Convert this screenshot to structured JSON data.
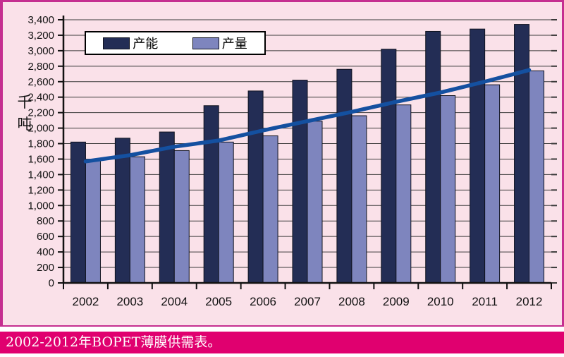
{
  "caption": "2002-2012年BOPET薄膜供需表。",
  "colors": {
    "background_pink": "#fae1e9",
    "frame_magenta": "#c52e90",
    "caption_bar": "#e0006f",
    "capacity_bar": "#232d55",
    "output_bar": "#7e85be",
    "trend_line": "#1450a0",
    "gridline": "#3a3a3a",
    "axis": "#111111"
  },
  "chart_data": {
    "type": "bar",
    "title": "",
    "caption": "2002-2012年BOPET薄膜供需表。",
    "ylabel": "千吨",
    "xlabel": "",
    "categories": [
      "2002",
      "2003",
      "2004",
      "2005",
      "2006",
      "2007",
      "2008",
      "2009",
      "2010",
      "2011",
      "2012"
    ],
    "series": [
      {
        "name": "产能",
        "type": "bar",
        "color": "#232d55",
        "values": [
          1820,
          1870,
          1950,
          2290,
          2480,
          2620,
          2760,
          3020,
          3250,
          3280,
          3340
        ]
      },
      {
        "name": "产量",
        "type": "bar",
        "color": "#7e85be",
        "values": [
          1580,
          1630,
          1710,
          1820,
          1900,
          2090,
          2160,
          2300,
          2420,
          2560,
          2740
        ]
      },
      {
        "name": "趋势线",
        "type": "line",
        "color": "#1450a0",
        "in_legend": false,
        "values": [
          1570,
          1650,
          1760,
          1840,
          1970,
          2090,
          2210,
          2340,
          2460,
          2600,
          2750
        ]
      }
    ],
    "ylim": [
      0,
      3400
    ],
    "ytick_step": 200,
    "grid": "horizontal",
    "legend_position": "top-left-inside",
    "legend_entries": [
      "产能",
      "产量"
    ]
  }
}
